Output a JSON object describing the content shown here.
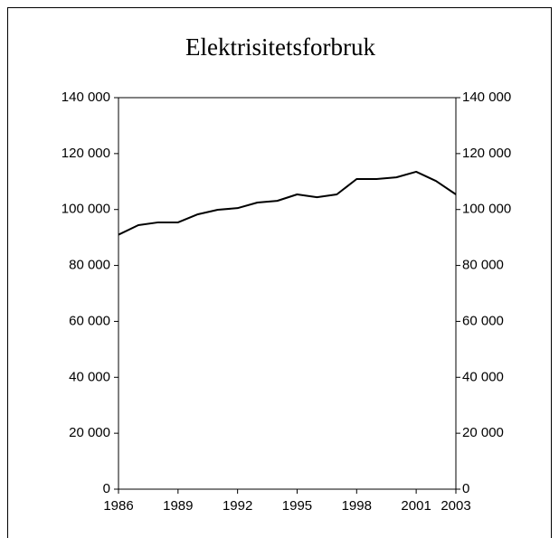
{
  "chart_data": {
    "type": "line",
    "title": "Elektrisitetsforbruk",
    "x": [
      1986,
      1987,
      1988,
      1989,
      1990,
      1991,
      1992,
      1993,
      1994,
      1995,
      1996,
      1997,
      1998,
      1999,
      2000,
      2001,
      2002,
      2003
    ],
    "series": [
      {
        "name": "Elektrisitetsforbruk",
        "color": "#000000",
        "values": [
          91000,
          94400,
          95400,
          95400,
          98300,
          99900,
          100500,
          102500,
          103100,
          105400,
          104400,
          105400,
          110900,
          110900,
          111500,
          113500,
          110200,
          105400
        ]
      }
    ],
    "xlim": [
      1986,
      2003
    ],
    "xticks": [
      1986,
      1989,
      1992,
      1995,
      1998,
      2001,
      2003
    ],
    "ylim": [
      0,
      140000
    ],
    "yticks": [
      0,
      {
        "value": 20000,
        "label": "20 000"
      },
      {
        "value": 40000,
        "label": "40 000"
      },
      {
        "value": 60000,
        "label": "60 000"
      },
      {
        "value": 80000,
        "label": "80 000"
      },
      {
        "value": 100000,
        "label": "100 000"
      },
      {
        "value": 120000,
        "label": "120 000"
      },
      {
        "value": 140000,
        "label": "140 000"
      }
    ],
    "y2lim": [
      0,
      140000
    ],
    "y2ticks": [
      0,
      {
        "value": 20000,
        "label": "20 000"
      },
      {
        "value": 40000,
        "label": "40 000"
      },
      {
        "value": 60000,
        "label": "60 000"
      },
      {
        "value": 80000,
        "label": "80 000"
      },
      {
        "value": 100000,
        "label": "100 000"
      },
      {
        "value": 120000,
        "label": "120 000"
      },
      {
        "value": 140000,
        "label": "140 000"
      }
    ],
    "grid": false
  }
}
